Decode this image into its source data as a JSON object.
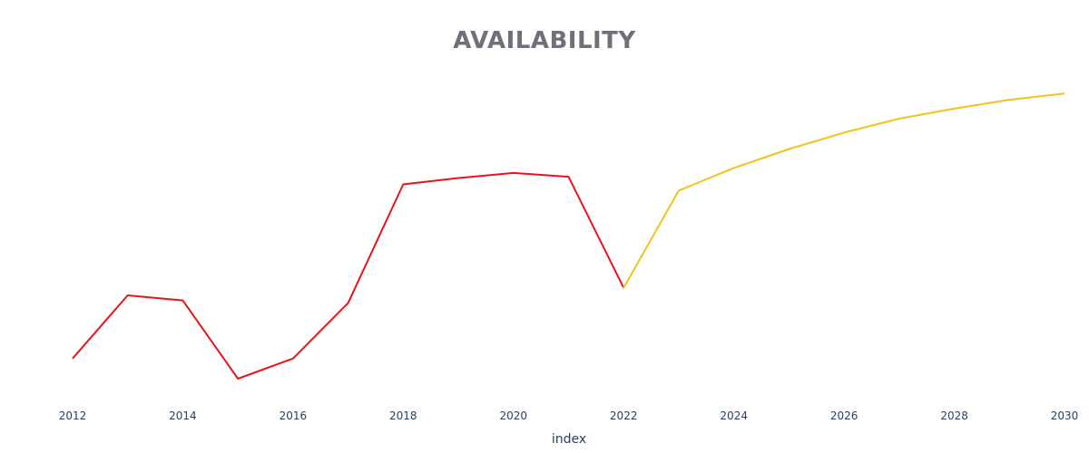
{
  "chart_data": {
    "type": "line",
    "title": "AVAILABILITY",
    "xlabel": "index",
    "ylabel": "",
    "xlim": [
      2012,
      2030
    ],
    "x_ticks": [
      "2012",
      "2014",
      "2016",
      "2018",
      "2020",
      "2022",
      "2024",
      "2026",
      "2028",
      "2030"
    ],
    "grid": false,
    "legend": "none",
    "series": [
      {
        "color": "#e8141c",
        "points": [
          {
            "x": 2012,
            "y": 19.5
          },
          {
            "x": 2013,
            "y": 44.5
          },
          {
            "x": 2014,
            "y": 42.5
          },
          {
            "x": 2015,
            "y": 11.5
          },
          {
            "x": 2016,
            "y": 19.5
          },
          {
            "x": 2017,
            "y": 41.5
          },
          {
            "x": 2018,
            "y": 88.5
          },
          {
            "x": 2019,
            "y": 91.0
          },
          {
            "x": 2020,
            "y": 93.0
          },
          {
            "x": 2021,
            "y": 91.5
          },
          {
            "x": 2022,
            "y": 47.5
          }
        ]
      },
      {
        "color": "#f0c419",
        "points": [
          {
            "x": 2022,
            "y": 47.5
          },
          {
            "x": 2023,
            "y": 86.0
          },
          {
            "x": 2024,
            "y": 95.0
          },
          {
            "x": 2025,
            "y": 102.5
          },
          {
            "x": 2026,
            "y": 109.0
          },
          {
            "x": 2027,
            "y": 114.5
          },
          {
            "x": 2028,
            "y": 118.5
          },
          {
            "x": 2029,
            "y": 122.0
          },
          {
            "x": 2030,
            "y": 124.5
          }
        ]
      }
    ]
  }
}
